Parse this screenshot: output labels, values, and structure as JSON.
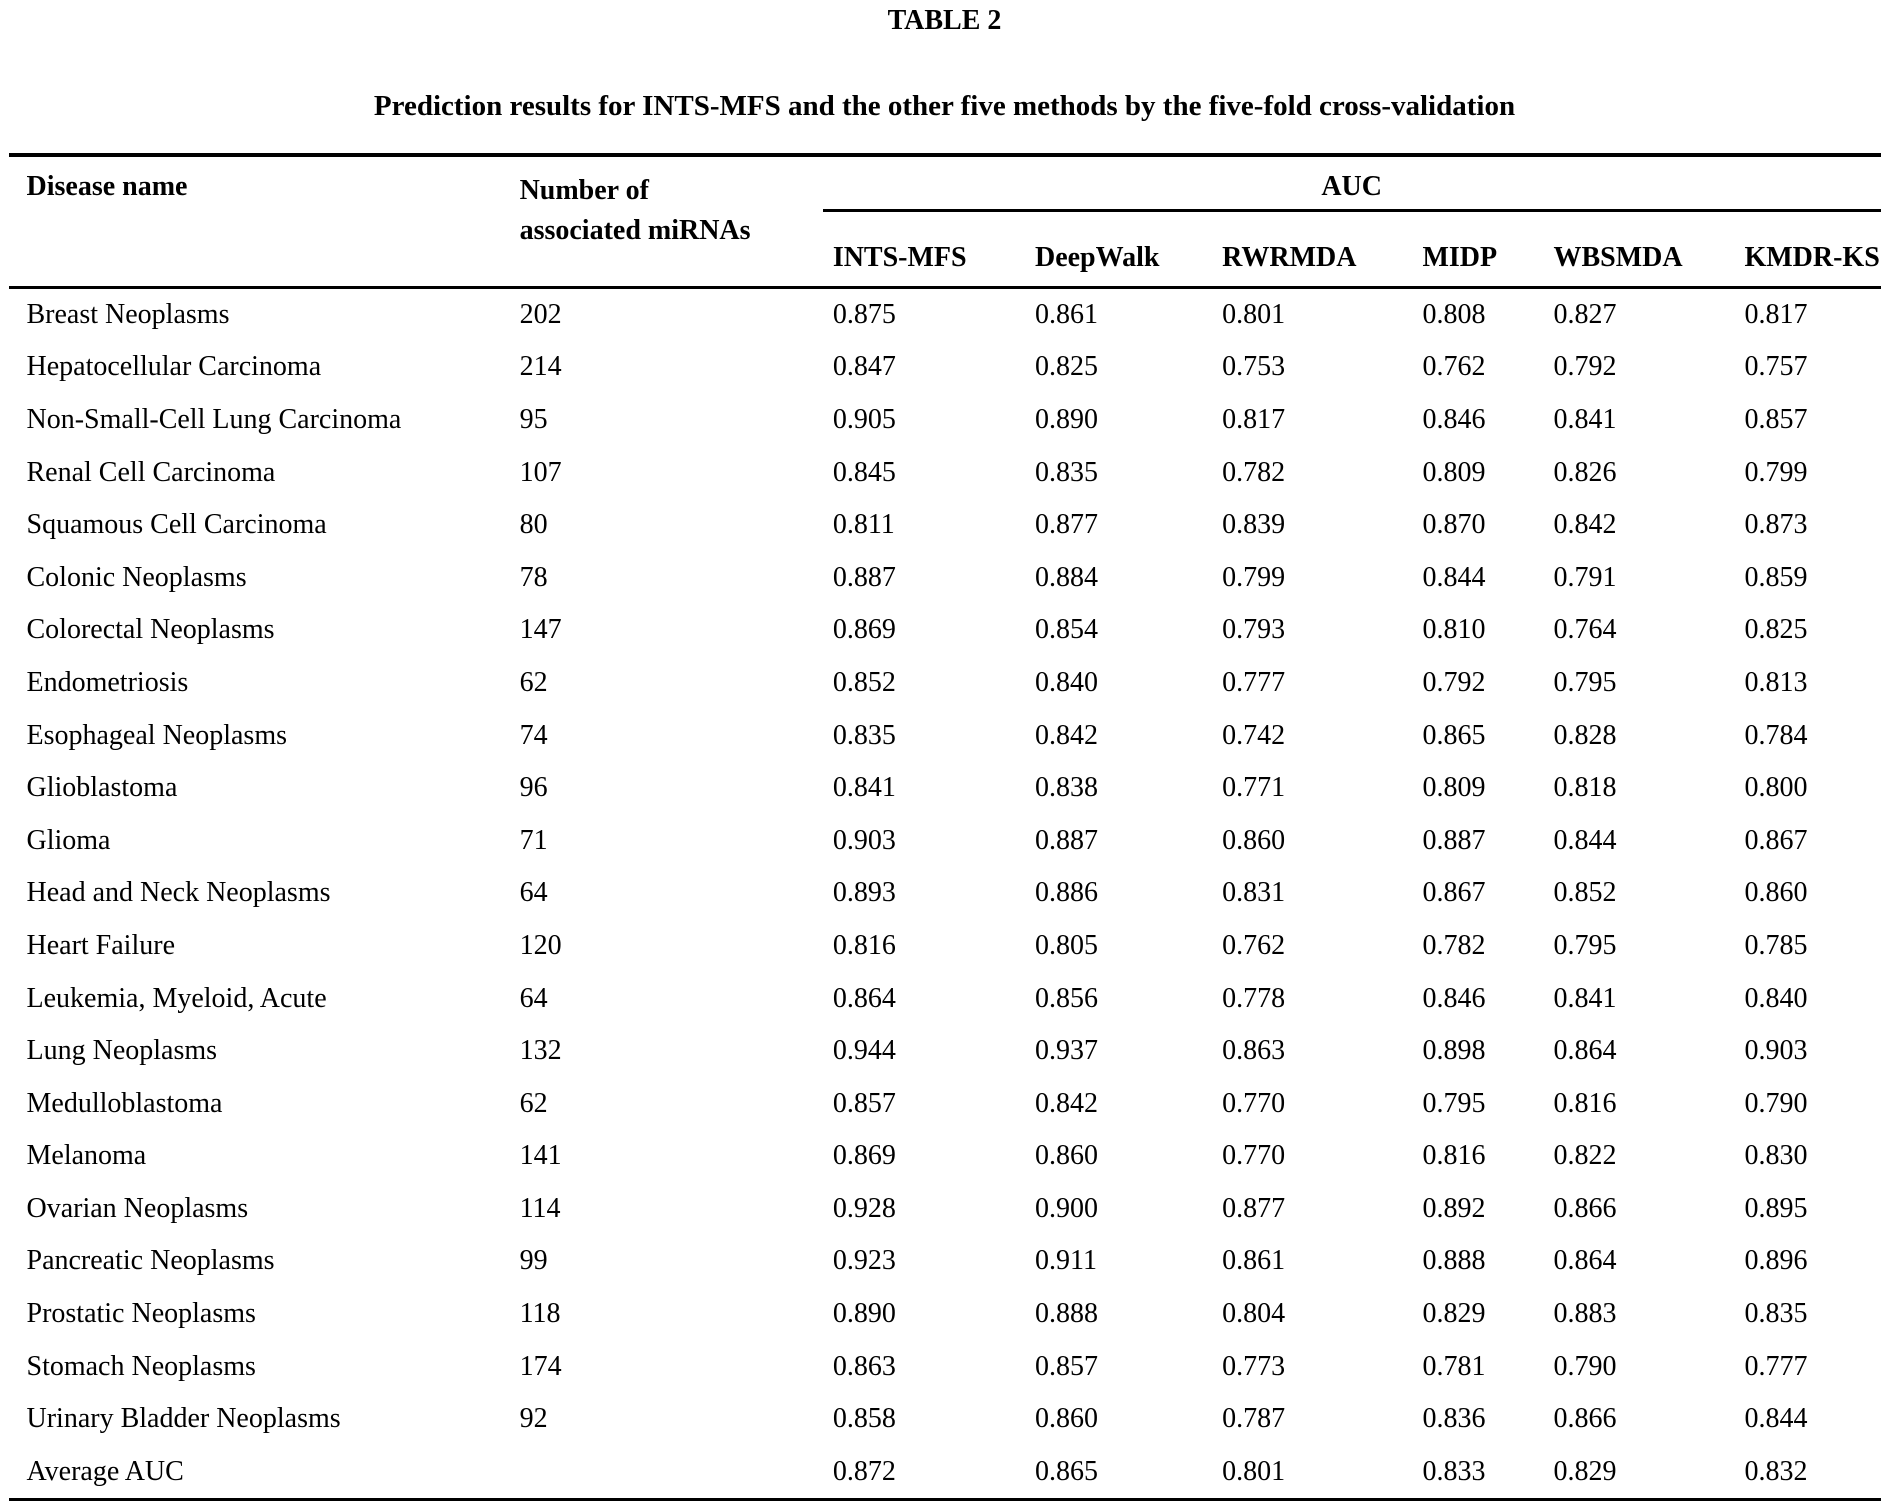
{
  "table": {
    "label": "TABLE 2",
    "caption": "Prediction results for INTS-MFS and the other five methods by the five-fold cross-validation",
    "col1_header": "Disease name",
    "col2_header": [
      "Number of",
      "associated miRNAs"
    ],
    "auc_group_header": "AUC",
    "method_headers": [
      "INTS-MFS",
      "DeepWalk",
      "RWRMDA",
      "MIDP",
      "WBSMDA",
      "KMDR-KS"
    ],
    "rows": [
      {
        "disease": "Breast Neoplasms",
        "mirnas": "202",
        "aucs": [
          "0.875",
          "0.861",
          "0.801",
          "0.808",
          "0.827",
          "0.817"
        ]
      },
      {
        "disease": "Hepatocellular Carcinoma",
        "mirnas": "214",
        "aucs": [
          "0.847",
          "0.825",
          "0.753",
          "0.762",
          "0.792",
          "0.757"
        ]
      },
      {
        "disease": "Non-Small-Cell Lung Carcinoma",
        "mirnas": "95",
        "aucs": [
          "0.905",
          "0.890",
          "0.817",
          "0.846",
          "0.841",
          "0.857"
        ]
      },
      {
        "disease": "Renal Cell Carcinoma",
        "mirnas": "107",
        "aucs": [
          "0.845",
          "0.835",
          "0.782",
          "0.809",
          "0.826",
          "0.799"
        ]
      },
      {
        "disease": "Squamous Cell Carcinoma",
        "mirnas": "80",
        "aucs": [
          "0.811",
          "0.877",
          "0.839",
          "0.870",
          "0.842",
          "0.873"
        ]
      },
      {
        "disease": "Colonic Neoplasms",
        "mirnas": "78",
        "aucs": [
          "0.887",
          "0.884",
          "0.799",
          "0.844",
          "0.791",
          "0.859"
        ]
      },
      {
        "disease": "Colorectal Neoplasms",
        "mirnas": "147",
        "aucs": [
          "0.869",
          "0.854",
          "0.793",
          "0.810",
          "0.764",
          "0.825"
        ]
      },
      {
        "disease": "Endometriosis",
        "mirnas": "62",
        "aucs": [
          "0.852",
          "0.840",
          "0.777",
          "0.792",
          "0.795",
          "0.813"
        ]
      },
      {
        "disease": "Esophageal Neoplasms",
        "mirnas": "74",
        "aucs": [
          "0.835",
          "0.842",
          "0.742",
          "0.865",
          "0.828",
          "0.784"
        ]
      },
      {
        "disease": "Glioblastoma",
        "mirnas": "96",
        "aucs": [
          "0.841",
          "0.838",
          "0.771",
          "0.809",
          "0.818",
          "0.800"
        ]
      },
      {
        "disease": "Glioma",
        "mirnas": "71",
        "aucs": [
          "0.903",
          "0.887",
          "0.860",
          "0.887",
          "0.844",
          "0.867"
        ]
      },
      {
        "disease": "Head and Neck Neoplasms",
        "mirnas": "64",
        "aucs": [
          "0.893",
          "0.886",
          "0.831",
          "0.867",
          "0.852",
          "0.860"
        ]
      },
      {
        "disease": "Heart Failure",
        "mirnas": "120",
        "aucs": [
          "0.816",
          "0.805",
          "0.762",
          "0.782",
          "0.795",
          "0.785"
        ]
      },
      {
        "disease": "Leukemia, Myeloid, Acute",
        "mirnas": "64",
        "aucs": [
          "0.864",
          "0.856",
          "0.778",
          "0.846",
          "0.841",
          "0.840"
        ]
      },
      {
        "disease": "Lung Neoplasms",
        "mirnas": "132",
        "aucs": [
          "0.944",
          "0.937",
          "0.863",
          "0.898",
          "0.864",
          "0.903"
        ]
      },
      {
        "disease": "Medulloblastoma",
        "mirnas": "62",
        "aucs": [
          "0.857",
          "0.842",
          "0.770",
          "0.795",
          "0.816",
          "0.790"
        ]
      },
      {
        "disease": "Melanoma",
        "mirnas": "141",
        "aucs": [
          "0.869",
          "0.860",
          "0.770",
          "0.816",
          "0.822",
          "0.830"
        ]
      },
      {
        "disease": "Ovarian Neoplasms",
        "mirnas": "114",
        "aucs": [
          "0.928",
          "0.900",
          "0.877",
          "0.892",
          "0.866",
          "0.895"
        ]
      },
      {
        "disease": "Pancreatic Neoplasms",
        "mirnas": "99",
        "aucs": [
          "0.923",
          "0.911",
          "0.861",
          "0.888",
          "0.864",
          "0.896"
        ]
      },
      {
        "disease": "Prostatic Neoplasms",
        "mirnas": "118",
        "aucs": [
          "0.890",
          "0.888",
          "0.804",
          "0.829",
          "0.883",
          "0.835"
        ]
      },
      {
        "disease": "Stomach Neoplasms",
        "mirnas": "174",
        "aucs": [
          "0.863",
          "0.857",
          "0.773",
          "0.781",
          "0.790",
          "0.777"
        ]
      },
      {
        "disease": "Urinary Bladder Neoplasms",
        "mirnas": "92",
        "aucs": [
          "0.858",
          "0.860",
          "0.787",
          "0.836",
          "0.866",
          "0.844"
        ]
      },
      {
        "disease": "Average AUC",
        "mirnas": "",
        "aucs": [
          "0.872",
          "0.865",
          "0.801",
          "0.833",
          "0.829",
          "0.832"
        ]
      }
    ]
  }
}
